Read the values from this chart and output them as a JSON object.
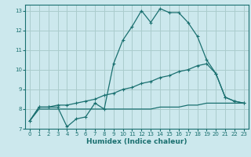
{
  "xlabel": "Humidex (Indice chaleur)",
  "bg_color": "#cce8ed",
  "grid_color": "#aacccc",
  "line_color": "#1a7070",
  "xlim": [
    -0.5,
    23.5
  ],
  "ylim": [
    7,
    13.3
  ],
  "xticks": [
    0,
    1,
    2,
    3,
    4,
    5,
    6,
    7,
    8,
    9,
    10,
    11,
    12,
    13,
    14,
    15,
    16,
    17,
    18,
    19,
    20,
    21,
    22,
    23
  ],
  "yticks": [
    7,
    8,
    9,
    10,
    11,
    12,
    13
  ],
  "series1_x": [
    0,
    1,
    2,
    3,
    4,
    5,
    6,
    7,
    8,
    9,
    10,
    11,
    12,
    13,
    14,
    15,
    16,
    17,
    18,
    19,
    20,
    21,
    22,
    23
  ],
  "series1_y": [
    7.4,
    8.1,
    8.1,
    8.1,
    7.1,
    7.5,
    7.6,
    8.3,
    8.0,
    10.3,
    11.5,
    12.2,
    13.0,
    12.4,
    13.1,
    12.9,
    12.9,
    12.4,
    11.7,
    10.5,
    9.8,
    8.6,
    8.4,
    8.3
  ],
  "series2_x": [
    0,
    1,
    2,
    3,
    4,
    5,
    6,
    7,
    8,
    9,
    10,
    11,
    12,
    13,
    14,
    15,
    16,
    17,
    18,
    19,
    20,
    21,
    22,
    23
  ],
  "series2_y": [
    7.4,
    8.1,
    8.1,
    8.2,
    8.2,
    8.3,
    8.4,
    8.5,
    8.7,
    8.8,
    9.0,
    9.1,
    9.3,
    9.4,
    9.6,
    9.7,
    9.9,
    10.0,
    10.2,
    10.3,
    9.8,
    8.6,
    8.4,
    8.3
  ],
  "series3_x": [
    0,
    1,
    2,
    3,
    4,
    5,
    6,
    7,
    8,
    9,
    10,
    11,
    12,
    13,
    14,
    15,
    16,
    17,
    18,
    19,
    20,
    21,
    22,
    23
  ],
  "series3_y": [
    7.4,
    8.0,
    8.0,
    8.0,
    8.0,
    8.0,
    8.0,
    8.0,
    8.0,
    8.0,
    8.0,
    8.0,
    8.0,
    8.0,
    8.1,
    8.1,
    8.1,
    8.2,
    8.2,
    8.3,
    8.3,
    8.3,
    8.3,
    8.3
  ]
}
